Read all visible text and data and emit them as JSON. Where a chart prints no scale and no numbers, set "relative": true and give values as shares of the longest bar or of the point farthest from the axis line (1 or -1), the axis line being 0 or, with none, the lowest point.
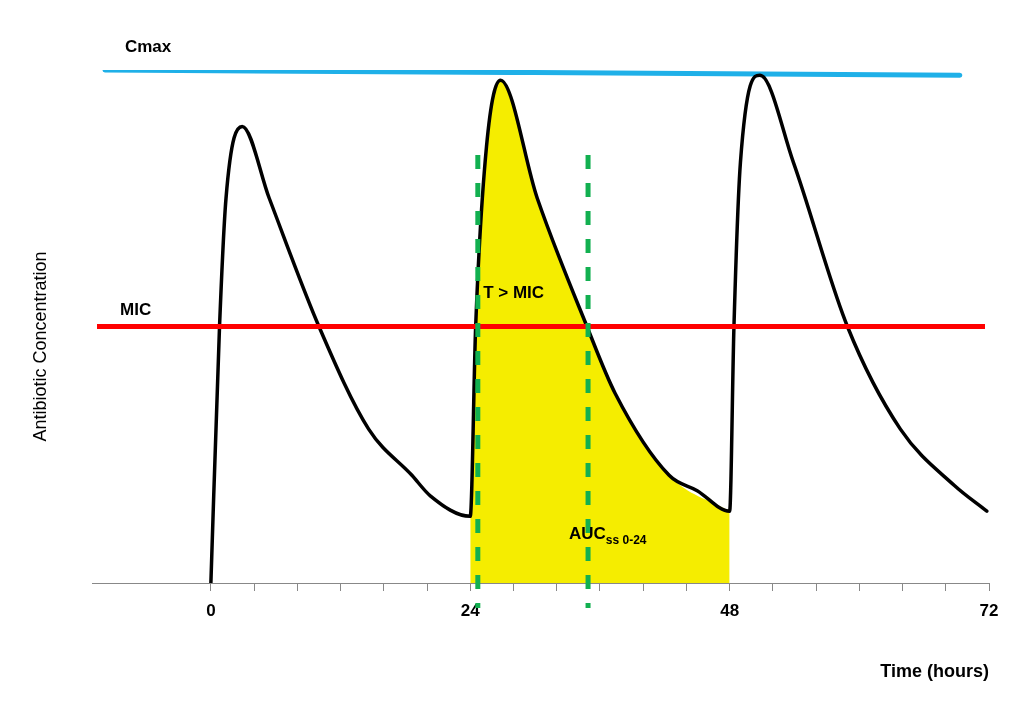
{
  "chart_data": {
    "type": "line",
    "xlabel": "Time (hours)",
    "ylabel": "Antibiotic Concentration",
    "relative": true,
    "grid": false,
    "legend": false,
    "marker": "none",
    "xlim": [
      -11,
      72
    ],
    "xticks": [
      0,
      {
        "value": 4,
        "label": null
      },
      {
        "value": 8,
        "label": null
      },
      {
        "value": 12,
        "label": null
      },
      {
        "value": 16,
        "label": null
      },
      {
        "value": 20,
        "label": null
      },
      24,
      {
        "value": 28,
        "label": null
      },
      {
        "value": 32,
        "label": null
      },
      {
        "value": 36,
        "label": null
      },
      {
        "value": 40,
        "label": null
      },
      {
        "value": 44,
        "label": null
      },
      48,
      {
        "value": 52,
        "label": null
      },
      {
        "value": 56,
        "label": null
      },
      {
        "value": 60,
        "label": null
      },
      {
        "value": 64,
        "label": null
      },
      {
        "value": 68,
        "label": null
      },
      72
    ],
    "series": [
      {
        "type": "area",
        "color": "#f5ed00",
        "x": [
          24,
          24.5,
          25.5,
          26.8,
          30.2,
          34.8,
          37.4,
          42.4,
          48
        ],
        "values": [
          0.13,
          0.5,
          0.85,
          0.98,
          0.75,
          0.5,
          0.37,
          0.21,
          0.14
        ]
      },
      {
        "color": "#000000",
        "x": [
          0,
          0.8,
          1.4,
          2.9,
          5.4,
          10,
          14.6,
          18.6,
          20.3,
          24,
          24.5,
          25.5,
          26.8,
          30.2,
          34.8,
          37.4,
          42.4,
          45,
          48,
          48.4,
          49,
          50.8,
          53.9,
          58.9,
          63.8,
          68.8,
          71.8
        ],
        "values": [
          0,
          0.5,
          0.75,
          0.89,
          0.75,
          0.5,
          0.3,
          0.21,
          0.17,
          0.13,
          0.5,
          0.85,
          0.98,
          0.75,
          0.5,
          0.37,
          0.21,
          0.18,
          0.14,
          0.5,
          0.82,
          0.99,
          0.82,
          0.5,
          0.3,
          0.19,
          0.14
        ]
      },
      {
        "type": "line",
        "name": "Cmax",
        "color": "#1fb0e8",
        "x": [
          -9.8,
          69.3
        ],
        "values": [
          1,
          0.99
        ]
      }
    ],
    "ref_lines": [
      {
        "axis": "y",
        "value": 0.5,
        "label": "MIC",
        "color": "#ff0000"
      },
      {
        "axis": "x",
        "value": 24.7,
        "color": "#12b050",
        "line_style": "dashed"
      },
      {
        "axis": "x",
        "value": 34.9,
        "color": "#12b050",
        "line_style": "dashed"
      }
    ],
    "annotations": [
      "T > MIC",
      "AUC$_{ss 0-24}$"
    ]
  }
}
